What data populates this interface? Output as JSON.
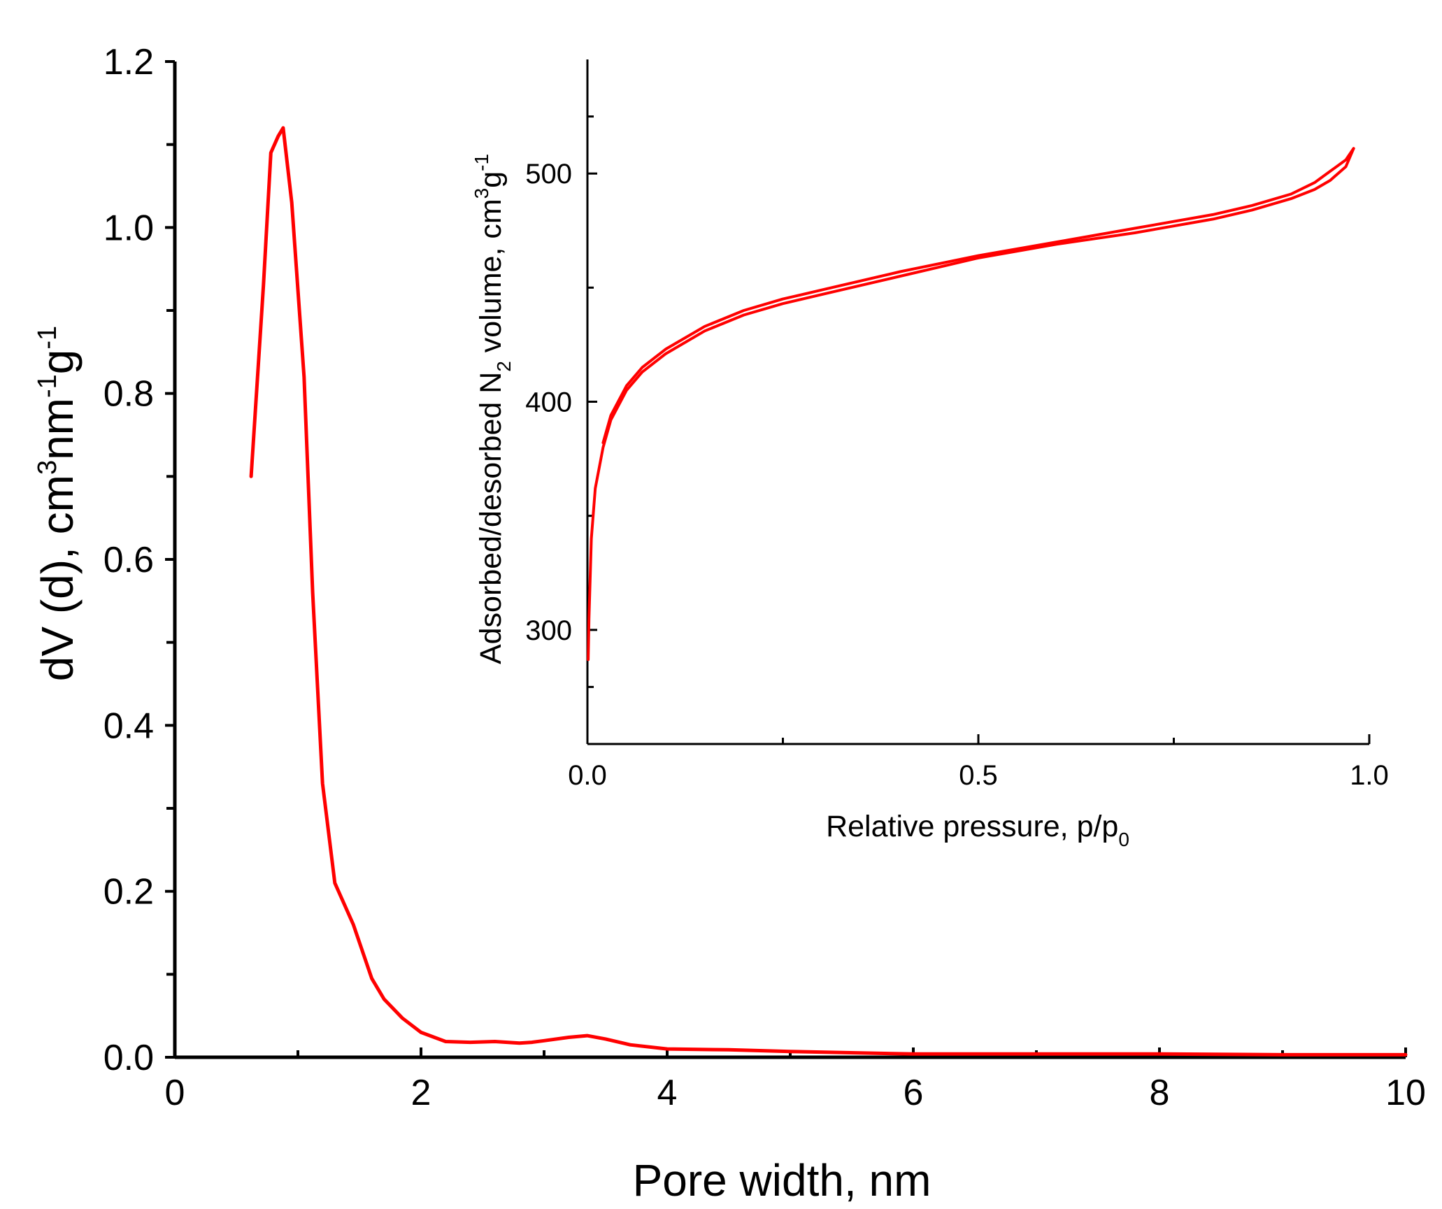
{
  "chart_data": [
    {
      "type": "line",
      "title": "",
      "xlabel": "Pore width, nm",
      "ylabel": {
        "prefix": "dV (d),  cm",
        "sup1": "3",
        "mid": "nm",
        "sup2": "-1",
        "mid2": "g",
        "sup3": "-1"
      },
      "xlim": [
        0,
        10
      ],
      "ylim": [
        0,
        1.2
      ],
      "x_ticks": [
        "0",
        "2",
        "4",
        "6",
        "8",
        "10"
      ],
      "y_ticks": [
        "0.0",
        "0.2",
        "0.4",
        "0.6",
        "0.8",
        "1.0",
        "1.2"
      ],
      "grid": false,
      "line_color": "#ff0000",
      "series": [
        {
          "x": [
            0.62,
            0.72,
            0.78,
            0.84,
            0.88,
            0.95,
            1.05,
            1.12,
            1.2,
            1.3,
            1.45,
            1.6,
            1.7,
            1.85,
            2.0,
            2.2,
            2.4,
            2.6,
            2.8,
            2.9,
            3.0,
            3.2,
            3.35,
            3.5,
            3.7,
            4.0,
            4.5,
            5.0,
            6.0,
            7.0,
            8.0,
            9.0,
            10.0
          ],
          "y": [
            0.7,
            0.93,
            1.09,
            1.11,
            1.12,
            1.03,
            0.82,
            0.56,
            0.33,
            0.21,
            0.16,
            0.095,
            0.07,
            0.047,
            0.03,
            0.019,
            0.018,
            0.019,
            0.017,
            0.018,
            0.02,
            0.024,
            0.026,
            0.022,
            0.015,
            0.01,
            0.009,
            0.007,
            0.004,
            0.004,
            0.004,
            0.003,
            0.003
          ]
        }
      ]
    },
    {
      "type": "line",
      "title": "",
      "xlabel": {
        "prefix": "Relative pressure, p/p",
        "sub": "0"
      },
      "ylabel": {
        "prefix": "Adsorbed/desorbed N",
        "sub": "2",
        "mid": " volume, cm",
        "sup1": "3",
        "mid2": "g",
        "sup2": "-1"
      },
      "xlim": [
        0,
        1.0
      ],
      "ylim": [
        250,
        550
      ],
      "x_ticks": [
        "0.0",
        "0.5",
        "1.0"
      ],
      "y_ticks": [
        "300",
        "400",
        "500"
      ],
      "grid": false,
      "line_color": "#ff0000",
      "series": [
        {
          "name": "",
          "x": [
            0.001,
            0.002,
            0.005,
            0.01,
            0.02,
            0.03,
            0.05,
            0.07,
            0.1,
            0.15,
            0.2,
            0.25,
            0.3,
            0.4,
            0.5,
            0.6,
            0.7,
            0.8,
            0.85,
            0.9,
            0.93,
            0.95,
            0.97,
            0.98
          ],
          "y": [
            287,
            305,
            340,
            362,
            380,
            392,
            405,
            413,
            421,
            431,
            438,
            443,
            447,
            455,
            463,
            469,
            474,
            480,
            484,
            489,
            493,
            497,
            503,
            511
          ]
        },
        {
          "name": "",
          "x": [
            0.98,
            0.97,
            0.95,
            0.93,
            0.9,
            0.85,
            0.8,
            0.7,
            0.6,
            0.5,
            0.4,
            0.3,
            0.25,
            0.2,
            0.15,
            0.1,
            0.07,
            0.05,
            0.03,
            0.02
          ],
          "y": [
            511,
            506,
            501,
            496,
            491,
            486,
            482,
            476,
            470,
            464,
            457,
            449,
            445,
            440,
            433,
            423,
            415,
            407,
            394,
            382
          ]
        }
      ]
    }
  ]
}
